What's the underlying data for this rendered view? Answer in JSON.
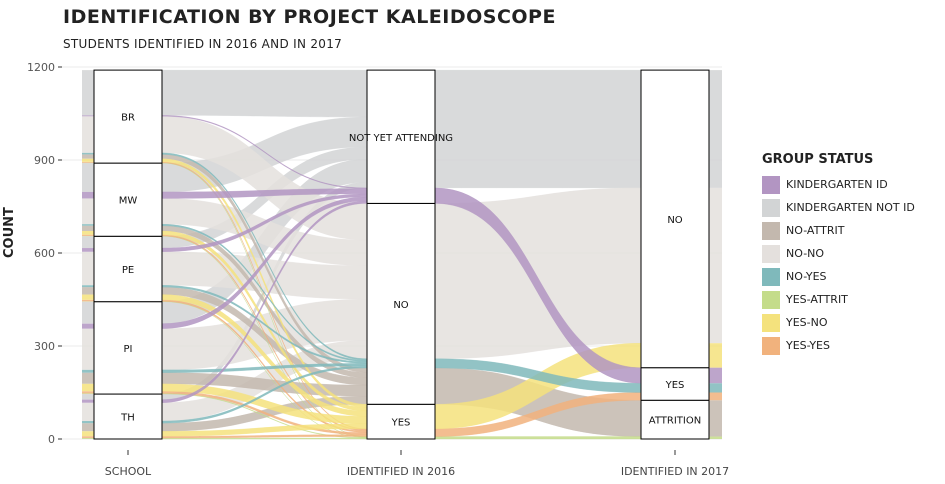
{
  "title": "IDENTIFICATION BY PROJECT KALEIDOSCOPE",
  "subtitle": "STUDENTS IDENTIFIED IN 2016 AND IN 2017",
  "colors": {
    "Kindergarten ID": "#b295c2",
    "Kindergarten not ID": "#d2d4d5",
    "No-attrit": "#c3b8ae",
    "No-no": "#e4e0dd",
    "No-yes": "#7fb9bb",
    "Yes-attrit": "#c4dc8a",
    "Yes-no": "#f4e27d",
    "Yes-yes": "#f1b27d"
  },
  "chart_data": {
    "type": "alluvial",
    "title": "IDENTIFICATION BY PROJECT KALEIDOSCOPE",
    "subtitle": "STUDENTS IDENTIFIED IN 2016 AND IN 2017",
    "ylabel": "COUNT",
    "ylim": [
      0,
      1200
    ],
    "yticks": [
      0,
      300,
      600,
      900,
      1200
    ],
    "axes": [
      "SCHOOL",
      "IDENTIFIED IN 2016",
      "IDENTIFIED IN 2017"
    ],
    "strata": [
      [
        {
          "label": "TH",
          "from": 0,
          "to": 145
        },
        {
          "label": "PI",
          "from": 145,
          "to": 443
        },
        {
          "label": "PE",
          "from": 443,
          "to": 654
        },
        {
          "label": "MW",
          "from": 654,
          "to": 890
        },
        {
          "label": "BR",
          "from": 890,
          "to": 1190
        }
      ],
      [
        {
          "label": "YES",
          "from": 0,
          "to": 112
        },
        {
          "label": "NO",
          "from": 112,
          "to": 760
        },
        {
          "label": "NOT YET ATTENDING",
          "from": 760,
          "to": 1190
        }
      ],
      [
        {
          "label": "ATTRITION",
          "from": 0,
          "to": 125
        },
        {
          "label": "YES",
          "from": 125,
          "to": 230
        },
        {
          "label": "NO",
          "from": 230,
          "to": 1190
        }
      ]
    ],
    "legend_title": "GROUP STATUS",
    "legend": [
      "KINDERGARTEN ID",
      "KINDERGARTEN NOT ID",
      "NO-ATTRIT",
      "NO-NO",
      "NO-YES",
      "YES-ATTRIT",
      "YES-NO",
      "YES-YES"
    ],
    "legend_keys": [
      "Kindergarten ID",
      "Kindergarten not ID",
      "No-attrit",
      "No-no",
      "No-yes",
      "Yes-attrit",
      "Yes-no",
      "Yes-yes"
    ],
    "series": [
      {
        "key": "Yes-attrit",
        "value": 8,
        "y2016": [
          0,
          8
        ],
        "y2017": [
          0,
          8
        ],
        "school": [
          [
            0,
            3
          ],
          [
            145,
            147
          ],
          [
            443,
            444
          ],
          [
            654,
            655
          ],
          [
            890,
            891
          ]
        ]
      },
      {
        "key": "Yes-yes",
        "value": 25,
        "y2016": [
          8,
          33
        ],
        "y2017": [
          125,
          150
        ],
        "school": [
          [
            3,
            9
          ],
          [
            147,
            154
          ],
          [
            444,
            449
          ],
          [
            655,
            659
          ],
          [
            891,
            894
          ]
        ]
      },
      {
        "key": "Yes-no",
        "value": 79,
        "y2016": [
          33,
          112
        ],
        "y2017": [
          230,
          309
        ],
        "school": [
          [
            9,
            25
          ],
          [
            154,
            178
          ],
          [
            449,
            466
          ],
          [
            659,
            671
          ],
          [
            894,
            904
          ]
        ]
      },
      {
        "key": "No-attrit",
        "value": 117,
        "y2016": [
          112,
          229
        ],
        "y2017": [
          8,
          125
        ],
        "school": [
          [
            25,
            51
          ],
          [
            178,
            214
          ],
          [
            466,
            490
          ],
          [
            671,
            688
          ],
          [
            904,
            918
          ]
        ]
      },
      {
        "key": "No-yes",
        "value": 30,
        "y2016": [
          229,
          259
        ],
        "y2017": [
          150,
          180
        ],
        "school": [
          [
            51,
            58
          ],
          [
            214,
            223
          ],
          [
            490,
            496
          ],
          [
            688,
            693
          ],
          [
            918,
            923
          ]
        ]
      },
      {
        "key": "No-no",
        "value": 501,
        "y2016": [
          259,
          760
        ],
        "y2017": [
          309,
          810
        ],
        "school": [
          [
            58,
            117
          ],
          [
            223,
            356
          ],
          [
            496,
            604
          ],
          [
            693,
            776
          ],
          [
            923,
            1041
          ]
        ]
      },
      {
        "key": "Kindergarten ID",
        "value": 50,
        "y2016": [
          760,
          810
        ],
        "y2017": [
          180,
          230
        ],
        "school": [
          [
            117,
            127
          ],
          [
            356,
            372
          ],
          [
            604,
            616
          ],
          [
            776,
            797
          ],
          [
            1041,
            1044
          ]
        ]
      },
      {
        "key": "Kindergarten not ID",
        "value": 380,
        "y2016": [
          810,
          1190
        ],
        "y2017": [
          810,
          1190
        ],
        "school": [
          [
            127,
            145
          ],
          [
            372,
            443
          ],
          [
            616,
            654
          ],
          [
            797,
            890
          ],
          [
            1044,
            1190
          ]
        ]
      }
    ]
  }
}
